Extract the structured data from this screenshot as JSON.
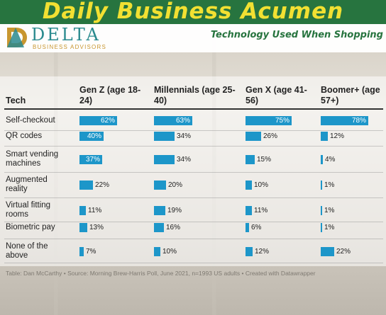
{
  "banner": {
    "title": "Daily Business Acumen"
  },
  "logo": {
    "name": "DELTA",
    "subtitle": "BUSINESS ADVISORS"
  },
  "subtitle": "Technology Used When Shopping",
  "colors": {
    "bar": "#1d96c9",
    "banner_bg": "#27743f",
    "banner_text": "#f2e032"
  },
  "chart_data": {
    "type": "table",
    "row_header": "Tech",
    "columns": [
      "Gen Z (age 18-24)",
      "Millennials (age 25-40)",
      "Gen X (age 41-56)",
      "Boomer+ (age 57+)"
    ],
    "rows": [
      {
        "label": "Self-checkout",
        "values": [
          62,
          63,
          75,
          78
        ]
      },
      {
        "label": "QR codes",
        "values": [
          40,
          34,
          26,
          12
        ]
      },
      {
        "label": "Smart vending machines",
        "values": [
          37,
          34,
          15,
          4
        ]
      },
      {
        "label": "Augmented reality",
        "values": [
          22,
          20,
          10,
          1
        ]
      },
      {
        "label": "Virtual fitting rooms",
        "values": [
          11,
          19,
          11,
          1
        ]
      },
      {
        "label": "Biometric pay",
        "values": [
          13,
          16,
          6,
          1
        ]
      },
      {
        "label": "None of the above",
        "values": [
          7,
          10,
          12,
          22
        ]
      }
    ],
    "unit": "%",
    "footnote": "Table: Dan McCarthy • Source: Morning Brew-Harris Poll, June 2021, n=1993 US adults • Created with Datawrapper"
  }
}
